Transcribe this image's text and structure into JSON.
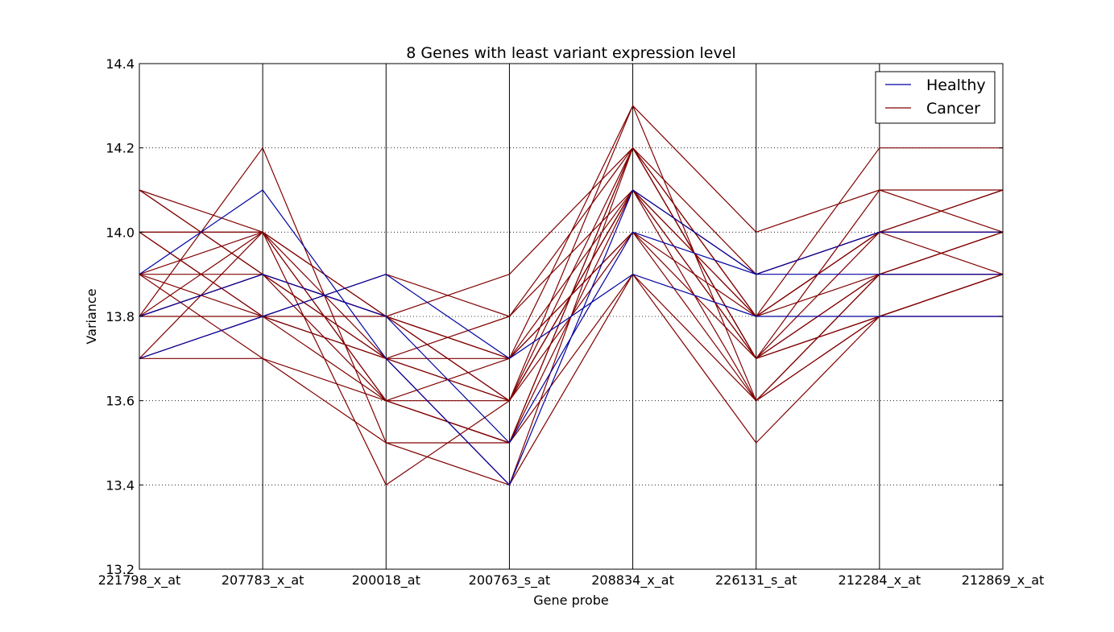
{
  "chart_data": {
    "type": "line",
    "subtype": "parallel-coordinates",
    "title": "8 Genes with least variant expression level",
    "xlabel": "Gene probe",
    "ylabel": "Variance",
    "categories": [
      "221798_x_at",
      "207783_x_at",
      "200018_at",
      "200763_s_at",
      "208834_x_at",
      "226131_s_at",
      "212284_x_at",
      "212869_x_at"
    ],
    "ylim": [
      13.2,
      14.4
    ],
    "yticks": [
      "13.2",
      "13.4",
      "13.6",
      "13.8",
      "14.0",
      "14.2",
      "14.4"
    ],
    "grid": "horizontal-dotted",
    "legend_position": "top-right",
    "legend": [
      {
        "name": "Healthy",
        "color": "#0000a0"
      },
      {
        "name": "Cancer",
        "color": "#800000"
      }
    ],
    "series": [
      {
        "name": "Healthy",
        "color": "#0000a0",
        "values": [
          13.9,
          14.1,
          13.7,
          13.4,
          14.1,
          13.9,
          14.0,
          14.0
        ]
      },
      {
        "name": "Healthy",
        "color": "#0000a0",
        "values": [
          13.8,
          13.9,
          13.8,
          13.5,
          14.0,
          13.9,
          13.9,
          13.9
        ]
      },
      {
        "name": "Healthy",
        "color": "#0000a0",
        "values": [
          13.7,
          13.8,
          13.9,
          13.7,
          13.9,
          13.8,
          13.8,
          13.8
        ]
      },
      {
        "name": "Cancer",
        "color": "#800000",
        "values": [
          14.1,
          14.0,
          13.6,
          13.5,
          14.2,
          13.7,
          13.8,
          13.9
        ]
      },
      {
        "name": "Cancer",
        "color": "#800000",
        "values": [
          14.1,
          13.9,
          13.7,
          13.6,
          14.1,
          13.8,
          13.9,
          14.0
        ]
      },
      {
        "name": "Cancer",
        "color": "#800000",
        "values": [
          14.0,
          14.0,
          13.8,
          13.6,
          14.2,
          13.7,
          14.0,
          14.1
        ]
      },
      {
        "name": "Cancer",
        "color": "#800000",
        "values": [
          14.0,
          13.8,
          13.7,
          13.7,
          14.1,
          13.9,
          14.0,
          14.0
        ]
      },
      {
        "name": "Cancer",
        "color": "#800000",
        "values": [
          13.9,
          14.0,
          13.6,
          13.6,
          14.3,
          13.6,
          13.8,
          13.9
        ]
      },
      {
        "name": "Cancer",
        "color": "#800000",
        "values": [
          13.9,
          13.9,
          13.8,
          13.7,
          14.0,
          13.7,
          13.9,
          13.9
        ]
      },
      {
        "name": "Cancer",
        "color": "#800000",
        "values": [
          13.8,
          14.2,
          13.5,
          13.4,
          14.2,
          13.8,
          14.2,
          14.2
        ]
      },
      {
        "name": "Cancer",
        "color": "#800000",
        "values": [
          13.8,
          13.9,
          13.7,
          13.6,
          14.1,
          13.6,
          13.8,
          13.8
        ]
      },
      {
        "name": "Cancer",
        "color": "#800000",
        "values": [
          13.7,
          14.0,
          13.8,
          13.7,
          14.0,
          13.8,
          14.0,
          14.0
        ]
      },
      {
        "name": "Cancer",
        "color": "#800000",
        "values": [
          13.7,
          13.7,
          13.6,
          13.5,
          13.9,
          13.5,
          13.8,
          13.9
        ]
      },
      {
        "name": "Cancer",
        "color": "#800000",
        "values": [
          14.0,
          13.8,
          13.9,
          13.8,
          14.2,
          13.7,
          13.9,
          14.0
        ]
      },
      {
        "name": "Cancer",
        "color": "#800000",
        "values": [
          13.9,
          13.8,
          13.6,
          13.7,
          14.3,
          14.0,
          14.1,
          14.1
        ]
      },
      {
        "name": "Cancer",
        "color": "#800000",
        "values": [
          13.8,
          14.0,
          13.4,
          13.6,
          14.1,
          13.8,
          14.0,
          14.1
        ]
      },
      {
        "name": "Cancer",
        "color": "#800000",
        "values": [
          14.1,
          13.9,
          13.8,
          13.6,
          14.0,
          13.6,
          13.9,
          13.9
        ]
      },
      {
        "name": "Cancer",
        "color": "#800000",
        "values": [
          13.9,
          13.7,
          13.5,
          13.5,
          14.1,
          13.7,
          13.8,
          13.9
        ]
      },
      {
        "name": "Cancer",
        "color": "#800000",
        "values": [
          13.7,
          13.8,
          13.8,
          13.9,
          14.2,
          13.8,
          14.0,
          14.0
        ]
      },
      {
        "name": "Cancer",
        "color": "#800000",
        "values": [
          13.8,
          13.9,
          13.6,
          13.5,
          14.2,
          13.9,
          14.0,
          13.9
        ]
      },
      {
        "name": "Cancer",
        "color": "#800000",
        "values": [
          14.0,
          14.0,
          13.7,
          13.8,
          14.1,
          13.7,
          14.1,
          14.0
        ]
      },
      {
        "name": "Cancer",
        "color": "#800000",
        "values": [
          13.8,
          13.8,
          13.7,
          13.4,
          13.9,
          13.6,
          13.9,
          14.0
        ]
      }
    ]
  }
}
